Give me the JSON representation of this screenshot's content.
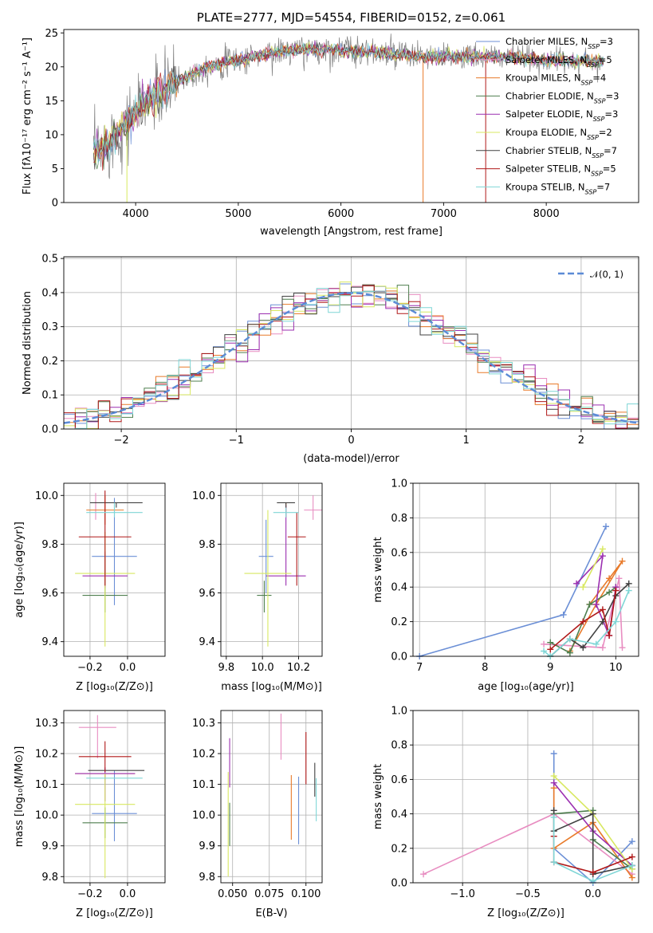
{
  "colors": [
    "#6b8fd6",
    "#e88dc1",
    "#e87a2a",
    "#4f7f4f",
    "#9b2fb0",
    "#d8e860",
    "#404040",
    "#b01818",
    "#7fd6d6"
  ],
  "spectrum_color": "#808080",
  "chart_data": [
    {
      "type": "line",
      "id": "spectrum",
      "title": "PLATE=2777, MJD=54554, FIBERID=0152, z=0.061",
      "xlabel": "wavelength [Angstrom, rest frame]",
      "ylabel": "Flux [fλ10⁻¹⁷ erg cm⁻² s⁻¹ A⁻¹]",
      "xlim": [
        3300,
        8900
      ],
      "ylim": [
        0,
        25.5
      ],
      "xticks": [
        4000,
        5000,
        6000,
        7000,
        8000
      ],
      "yticks": [
        0,
        5,
        10,
        15,
        20,
        25
      ],
      "grid": false,
      "legend_position": "right",
      "data_range": [
        3590,
        8560
      ],
      "continuum_knots": [
        [
          3590,
          7.0
        ],
        [
          3700,
          8.5
        ],
        [
          3900,
          11.5
        ],
        [
          4100,
          14.8
        ],
        [
          4400,
          17.8
        ],
        [
          4700,
          20.0
        ],
        [
          5000,
          21.0
        ],
        [
          5300,
          22.0
        ],
        [
          5600,
          22.5
        ],
        [
          6000,
          22.5
        ],
        [
          6400,
          22.0
        ],
        [
          6800,
          21.5
        ],
        [
          7200,
          21.5
        ],
        [
          7600,
          21.5
        ],
        [
          8000,
          21.0
        ],
        [
          8560,
          20.8
        ]
      ],
      "series": [
        {
          "name": "Chabrier MILES, N",
          "sub": "SSP",
          "tail": "=3"
        },
        {
          "name": "Salpeter MILES, N",
          "sub": "SSP",
          "tail": "=5"
        },
        {
          "name": "Kroupa MILES, N",
          "sub": "SSP",
          "tail": "=4"
        },
        {
          "name": "Chabrier ELODIE, N",
          "sub": "SSP",
          "tail": "=3"
        },
        {
          "name": "Salpeter ELODIE, N",
          "sub": "SSP",
          "tail": "=3"
        },
        {
          "name": "Kroupa ELODIE, N",
          "sub": "SSP",
          "tail": "=2"
        },
        {
          "name": "Chabrier STELIB, N",
          "sub": "SSP",
          "tail": "=7"
        },
        {
          "name": "Salpeter STELIB, N",
          "sub": "SSP",
          "tail": "=5"
        },
        {
          "name": "Kroupa STELIB, N",
          "sub": "SSP",
          "tail": "=7"
        }
      ]
    },
    {
      "type": "histogram",
      "id": "residuals",
      "xlabel": "(data-model)/error",
      "ylabel": "Normed distribution",
      "xlim": [
        -2.5,
        2.5
      ],
      "ylim": [
        0,
        0.505
      ],
      "xticks": [
        -2,
        -1,
        0,
        1,
        2
      ],
      "yticks": [
        0.0,
        0.1,
        0.2,
        0.3,
        0.4,
        0.5
      ],
      "grid": true,
      "bin_width": 0.1,
      "reference_curve": {
        "name": "𝒩(0, 1)",
        "style": "dashed"
      },
      "legend_position": "top-right"
    },
    {
      "type": "scatter",
      "id": "z-age",
      "xlabel": "Z [log₁₀(Z/Z⊙)]",
      "ylabel": "age  [log₁₀(age/yr)]",
      "xlim": [
        -0.34,
        0.2
      ],
      "ylim": [
        9.34,
        10.05
      ],
      "xticks": [
        -0.2,
        0.0
      ],
      "yticks": [
        9.4,
        9.6,
        9.8,
        10.0
      ],
      "grid": true,
      "points": [
        {
          "x": -0.07,
          "xerr": 0.12,
          "y": 9.75,
          "yerr": [
            0.2,
            0.24
          ]
        },
        {
          "x": -0.17,
          "xerr": 0.0,
          "y": 9.94,
          "yerr": [
            0.04,
            0.07
          ]
        },
        {
          "x": -0.12,
          "xerr": 0.1,
          "y": 9.94,
          "yerr": [
            0.06,
            0.06
          ]
        },
        {
          "x": -0.12,
          "xerr": 0.12,
          "y": 9.59,
          "yerr": [
            0.07,
            0.17
          ]
        },
        {
          "x": -0.12,
          "xerr": 0.12,
          "y": 9.67,
          "yerr": [
            0.05,
            0.1
          ]
        },
        {
          "x": -0.12,
          "xerr": 0.16,
          "y": 9.68,
          "yerr": [
            0.3,
            0.17
          ]
        },
        {
          "x": -0.06,
          "xerr": 0.14,
          "y": 9.97,
          "yerr": [
            0.02,
            0.0
          ]
        },
        {
          "x": -0.12,
          "xerr": 0.14,
          "y": 9.83,
          "yerr": [
            0.2,
            0.19
          ]
        },
        {
          "x": -0.07,
          "xerr": 0.15,
          "y": 9.93,
          "yerr": [
            0.02,
            0.04
          ]
        }
      ]
    },
    {
      "type": "scatter",
      "id": "mass-age",
      "xlabel": "mass [log₁₀(M/M⊙)]",
      "ylabel": "",
      "xlim": [
        9.77,
        10.33
      ],
      "ylim": [
        9.34,
        10.05
      ],
      "xticks": [
        9.8,
        10.0,
        10.2
      ],
      "yticks": [
        9.4,
        9.6,
        9.8,
        10.0
      ],
      "grid": true,
      "points": [
        {
          "x": 10.02,
          "xerr": 0.04,
          "y": 9.75,
          "yerr": [
            0.15,
            0.15
          ]
        },
        {
          "x": 10.28,
          "xerr": 0.05,
          "y": 9.94,
          "yerr": [
            0.04,
            0.06
          ]
        },
        {
          "x": 10.13,
          "xerr": 0.0,
          "y": 9.94,
          "yerr": [
            0.03,
            0.03
          ]
        },
        {
          "x": 10.01,
          "xerr": 0.04,
          "y": 9.59,
          "yerr": [
            0.07,
            0.06
          ]
        },
        {
          "x": 10.13,
          "xerr": 0.11,
          "y": 9.67,
          "yerr": [
            0.04,
            0.29
          ]
        },
        {
          "x": 10.03,
          "xerr": 0.13,
          "y": 9.68,
          "yerr": [
            0.3,
            0.26
          ]
        },
        {
          "x": 10.13,
          "xerr": 0.05,
          "y": 9.97,
          "yerr": [
            0.02,
            0.0
          ]
        },
        {
          "x": 10.19,
          "xerr": 0.05,
          "y": 9.83,
          "yerr": [
            0.2,
            0.1
          ]
        },
        {
          "x": 10.13,
          "xerr": 0.07,
          "y": 9.93,
          "yerr": [
            0.02,
            0.02
          ]
        }
      ]
    },
    {
      "type": "line",
      "id": "age-weight",
      "xlabel": "age  [log₁₀(age/yr)]",
      "ylabel": "mass weight",
      "xlim": [
        6.9,
        10.35
      ],
      "ylim": [
        0,
        1.0
      ],
      "xticks": [
        7,
        8,
        9,
        10
      ],
      "yticks": [
        0.0,
        0.2,
        0.4,
        0.6,
        0.8,
        1.0
      ],
      "grid": true,
      "series": [
        [
          [
            7.0,
            0.0
          ],
          [
            9.2,
            0.24
          ],
          [
            9.85,
            0.75
          ]
        ],
        [
          [
            8.9,
            0.07
          ],
          [
            9.8,
            0.05
          ],
          [
            10.05,
            0.45
          ],
          [
            10.1,
            0.05
          ]
        ],
        [
          [
            9.3,
            0.03
          ],
          [
            9.7,
            0.3
          ],
          [
            10.1,
            0.55
          ],
          [
            9.9,
            0.45
          ],
          [
            9.6,
            0.3
          ]
        ],
        [
          [
            9.0,
            0.08
          ],
          [
            9.3,
            0.02
          ],
          [
            9.6,
            0.3
          ],
          [
            9.9,
            0.37
          ],
          [
            10.0,
            0.4
          ]
        ],
        [
          [
            9.4,
            0.42
          ],
          [
            9.8,
            0.58
          ],
          [
            9.7,
            0.3
          ],
          [
            9.9,
            0.12
          ],
          [
            10.0,
            0.4
          ]
        ],
        [
          [
            9.5,
            0.4
          ],
          [
            9.8,
            0.62
          ]
        ],
        [
          [
            9.0,
            0.0
          ],
          [
            9.3,
            0.1
          ],
          [
            9.5,
            0.05
          ],
          [
            9.8,
            0.2
          ],
          [
            10.0,
            0.35
          ],
          [
            10.2,
            0.42
          ]
        ],
        [
          [
            9.0,
            0.04
          ],
          [
            9.5,
            0.2
          ],
          [
            9.8,
            0.27
          ],
          [
            9.9,
            0.12
          ],
          [
            10.0,
            0.38
          ]
        ],
        [
          [
            8.9,
            0.03
          ],
          [
            9.0,
            0.0
          ],
          [
            9.3,
            0.1
          ],
          [
            9.7,
            0.07
          ],
          [
            10.0,
            0.2
          ],
          [
            10.2,
            0.38
          ]
        ]
      ]
    },
    {
      "type": "scatter",
      "id": "z-mass",
      "xlabel": "Z [log₁₀(Z/Z⊙)]",
      "ylabel": "mass [log₁₀(M/M⊙)]",
      "xlim": [
        -0.34,
        0.2
      ],
      "ylim": [
        9.78,
        10.34
      ],
      "xticks": [
        -0.2,
        0.0
      ],
      "yticks": [
        9.8,
        9.9,
        10.0,
        10.1,
        10.2,
        10.3
      ],
      "grid": true,
      "points": [
        {
          "x": -0.07,
          "xerr": 0.12,
          "y": 10.005,
          "yerr": [
            0.09,
            0.14
          ]
        },
        {
          "x": -0.16,
          "xerr": 0.1,
          "y": 10.285,
          "yerr": [
            0.1,
            0.04
          ]
        },
        {
          "x": -0.12,
          "xerr": 0.16,
          "y": 10.135,
          "yerr": [
            0.02,
            0.0
          ]
        },
        {
          "x": -0.12,
          "xerr": 0.12,
          "y": 9.975,
          "yerr": [
            0.05,
            0.05
          ]
        },
        {
          "x": -0.12,
          "xerr": 0.16,
          "y": 10.135,
          "yerr": [
            0.09,
            0.02
          ]
        },
        {
          "x": -0.12,
          "xerr": 0.16,
          "y": 10.035,
          "yerr": [
            0.24,
            0.1
          ]
        },
        {
          "x": -0.06,
          "xerr": 0.15,
          "y": 10.145,
          "yerr": [
            0.0,
            0.0
          ]
        },
        {
          "x": -0.12,
          "xerr": 0.14,
          "y": 10.19,
          "yerr": [
            0.05,
            0.05
          ]
        },
        {
          "x": -0.07,
          "xerr": 0.15,
          "y": 10.12,
          "yerr": [
            0.0,
            0.0
          ]
        }
      ]
    },
    {
      "type": "scatter",
      "id": "ebv-mass",
      "xlabel": "E(B-V)",
      "ylabel": "",
      "xlim": [
        0.042,
        0.111
      ],
      "ylim": [
        9.78,
        10.34
      ],
      "xticks": [
        0.05,
        0.075,
        0.1
      ],
      "xtick_labels": [
        "0.050",
        "0.075",
        "0.100"
      ],
      "yticks": [
        9.8,
        9.9,
        10.0,
        10.1,
        10.2,
        10.3
      ],
      "grid": true,
      "points": [
        {
          "x": 0.095,
          "xerr": 0.0,
          "y": 10.005,
          "yerr": [
            0.1,
            0.12
          ]
        },
        {
          "x": 0.083,
          "xerr": 0.0,
          "y": 10.25,
          "yerr": [
            0.07,
            0.08
          ]
        },
        {
          "x": 0.09,
          "xerr": 0.0,
          "y": 10.0,
          "yerr": [
            0.08,
            0.13
          ]
        },
        {
          "x": 0.048,
          "xerr": 0.0,
          "y": 9.99,
          "yerr": [
            0.09,
            0.05
          ]
        },
        {
          "x": 0.048,
          "xerr": 0.0,
          "y": 10.17,
          "yerr": [
            0.08,
            0.08
          ]
        },
        {
          "x": 0.047,
          "xerr": 0.0,
          "y": 9.97,
          "yerr": [
            0.17,
            0.17
          ]
        },
        {
          "x": 0.106,
          "xerr": 0.0,
          "y": 10.11,
          "yerr": [
            0.05,
            0.06
          ]
        },
        {
          "x": 0.1,
          "xerr": 0.0,
          "y": 10.18,
          "yerr": [
            0.08,
            0.09
          ]
        },
        {
          "x": 0.107,
          "xerr": 0.0,
          "y": 10.05,
          "yerr": [
            0.07,
            0.07
          ]
        }
      ]
    },
    {
      "type": "line",
      "id": "z-weight",
      "xlabel": "Z [log₁₀(Z/Z⊙)]",
      "ylabel": "mass weight",
      "xlim": [
        -1.38,
        0.35
      ],
      "ylim": [
        0,
        1.0
      ],
      "xticks": [
        -1.0,
        -0.5,
        0.0
      ],
      "xtick_labels": [
        "−1.0",
        "−0.5",
        "0.0"
      ],
      "yticks": [
        0.0,
        0.2,
        0.4,
        0.6,
        0.8,
        1.0
      ],
      "grid": true,
      "series": [
        [
          [
            -0.3,
            0.75
          ],
          [
            -0.3,
            0.2
          ],
          [
            0.0,
            0.0
          ],
          [
            0.3,
            0.24
          ]
        ],
        [
          [
            -1.3,
            0.05
          ],
          [
            -0.3,
            0.4
          ],
          [
            0.3,
            0.05
          ]
        ],
        [
          [
            -0.3,
            0.55
          ],
          [
            -0.3,
            0.2
          ],
          [
            0.0,
            0.35
          ],
          [
            0.3,
            0.03
          ]
        ],
        [
          [
            -0.3,
            0.4
          ],
          [
            0.0,
            0.42
          ],
          [
            0.0,
            0.25
          ],
          [
            0.3,
            0.08
          ]
        ],
        [
          [
            -0.3,
            0.58
          ],
          [
            0.0,
            0.3
          ],
          [
            0.3,
            0.1
          ]
        ],
        [
          [
            -0.3,
            0.62
          ],
          [
            0.0,
            0.4
          ],
          [
            0.3,
            0.08
          ]
        ],
        [
          [
            -0.3,
            0.42
          ],
          [
            -0.3,
            0.3
          ],
          [
            0.0,
            0.4
          ],
          [
            0.0,
            0.05
          ],
          [
            0.3,
            0.1
          ]
        ],
        [
          [
            -0.3,
            0.27
          ],
          [
            -0.3,
            0.12
          ],
          [
            0.0,
            0.06
          ],
          [
            0.3,
            0.15
          ]
        ],
        [
          [
            -0.3,
            0.38
          ],
          [
            -0.3,
            0.12
          ],
          [
            0.0,
            0.01
          ],
          [
            0.3,
            0.1
          ]
        ]
      ]
    }
  ]
}
